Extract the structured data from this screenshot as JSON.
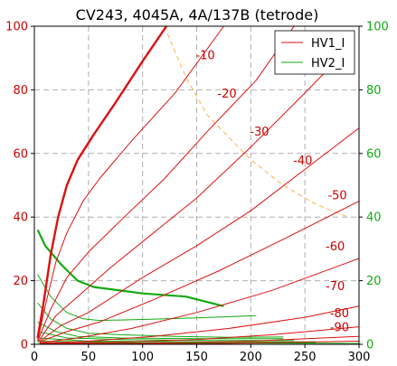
{
  "chart_data": {
    "type": "line",
    "title": "CV243, 4045A, 4A/137B (tetrode)",
    "xlim": [
      0,
      300
    ],
    "ylim": [
      0,
      100
    ],
    "y2lim": [
      0,
      100
    ],
    "xticks": [
      "0",
      "50",
      "100",
      "150",
      "200",
      "250",
      "300"
    ],
    "yticks": [
      "0",
      "20",
      "40",
      "60",
      "80",
      "100"
    ],
    "y2ticks": [
      "0",
      "20",
      "40",
      "60",
      "80",
      "100"
    ],
    "grid": true,
    "legend_position": "top-right",
    "colors": {
      "hv1": "#dd1111",
      "hv2": "#11aa11",
      "hv2_axis": "#11aa11",
      "dissipation": "#ffb040",
      "grid": "#b0b0b0"
    },
    "series": [
      {
        "name": "HV1_I",
        "color": "#dd1111",
        "role": "legend"
      },
      {
        "name": "HV2_I",
        "color": "#11aa11",
        "role": "legend"
      }
    ],
    "hv1_curves": [
      {
        "points": [
          [
            3,
            2
          ],
          [
            8,
            12
          ],
          [
            15,
            28
          ],
          [
            22,
            40
          ],
          [
            30,
            50
          ],
          [
            40,
            58
          ],
          [
            55,
            66
          ],
          [
            75,
            76
          ],
          [
            100,
            89
          ],
          [
            122,
            100
          ]
        ],
        "width": 2.4
      },
      {
        "points": [
          [
            3,
            1
          ],
          [
            10,
            12
          ],
          [
            20,
            26
          ],
          [
            30,
            35
          ],
          [
            45,
            45
          ],
          [
            60,
            52
          ],
          [
            90,
            64
          ],
          [
            130,
            79
          ],
          [
            175,
            100
          ]
        ],
        "width": 1
      },
      {
        "points": [
          [
            3,
            1
          ],
          [
            15,
            11
          ],
          [
            30,
            21
          ],
          [
            50,
            29
          ],
          [
            80,
            39
          ],
          [
            120,
            52
          ],
          [
            160,
            67
          ],
          [
            205,
            83
          ],
          [
            240,
            100
          ]
        ],
        "width": 1
      },
      {
        "points": [
          [
            4,
            1
          ],
          [
            20,
            9
          ],
          [
            40,
            15
          ],
          [
            70,
            24
          ],
          [
            110,
            35
          ],
          [
            150,
            46
          ],
          [
            200,
            62
          ],
          [
            250,
            79
          ],
          [
            290,
            93
          ]
        ],
        "width": 1
      },
      {
        "points": [
          [
            5,
            1
          ],
          [
            25,
            6
          ],
          [
            50,
            10
          ],
          [
            100,
            21
          ],
          [
            150,
            31
          ],
          [
            200,
            42
          ],
          [
            250,
            55
          ],
          [
            300,
            68
          ]
        ],
        "width": 1
      },
      {
        "points": [
          [
            5,
            0.8
          ],
          [
            30,
            4
          ],
          [
            60,
            7
          ],
          [
            110,
            14
          ],
          [
            170,
            23
          ],
          [
            230,
            33
          ],
          [
            300,
            45
          ]
        ],
        "width": 1
      },
      {
        "points": [
          [
            5,
            0.5
          ],
          [
            40,
            2
          ],
          [
            90,
            5
          ],
          [
            150,
            10
          ],
          [
            220,
            17
          ],
          [
            300,
            27
          ]
        ],
        "width": 1
      },
      {
        "points": [
          [
            5,
            0.3
          ],
          [
            50,
            1
          ],
          [
            110,
            2.5
          ],
          [
            180,
            5
          ],
          [
            250,
            8.5
          ],
          [
            300,
            12
          ]
        ],
        "width": 1
      },
      {
        "points": [
          [
            5,
            0.2
          ],
          [
            80,
            0.7
          ],
          [
            150,
            1.5
          ],
          [
            220,
            3
          ],
          [
            300,
            5.5
          ]
        ],
        "width": 1
      },
      {
        "points": [
          [
            5,
            0.1
          ],
          [
            100,
            0.3
          ],
          [
            200,
            1
          ],
          [
            300,
            2.5
          ]
        ],
        "width": 1
      },
      {
        "points": [
          [
            5,
            0.05
          ],
          [
            150,
            0.15
          ],
          [
            300,
            1
          ]
        ],
        "width": 1
      }
    ],
    "hv2_curves": [
      {
        "points": [
          [
            3,
            36
          ],
          [
            10,
            31
          ],
          [
            25,
            25
          ],
          [
            40,
            20
          ],
          [
            55,
            18
          ],
          [
            100,
            16
          ],
          [
            140,
            15
          ],
          [
            175,
            12
          ]
        ],
        "width": 2.2
      },
      {
        "points": [
          [
            3,
            22
          ],
          [
            15,
            15
          ],
          [
            30,
            10
          ],
          [
            45,
            8
          ],
          [
            60,
            7.5
          ],
          [
            100,
            7.8
          ],
          [
            150,
            8.3
          ],
          [
            205,
            9
          ]
        ],
        "width": 1
      },
      {
        "points": [
          [
            3,
            13
          ],
          [
            15,
            8
          ],
          [
            30,
            5
          ],
          [
            50,
            3.5
          ],
          [
            80,
            3
          ],
          [
            130,
            2.5
          ],
          [
            180,
            2.2
          ],
          [
            230,
            2.3
          ]
        ],
        "width": 1
      },
      {
        "points": [
          [
            3,
            7
          ],
          [
            20,
            4
          ],
          [
            40,
            2.5
          ],
          [
            80,
            2
          ],
          [
            150,
            1.8
          ],
          [
            230,
            1.8
          ]
        ],
        "width": 1
      },
      {
        "points": [
          [
            3,
            4
          ],
          [
            30,
            2
          ],
          [
            80,
            1.5
          ],
          [
            160,
            1.2
          ],
          [
            240,
            1.2
          ]
        ],
        "width": 1
      },
      {
        "points": [
          [
            3,
            2
          ],
          [
            50,
            1
          ],
          [
            150,
            0.8
          ],
          [
            260,
            0.8
          ]
        ],
        "width": 1
      },
      {
        "points": [
          [
            3,
            1
          ],
          [
            100,
            0.5
          ],
          [
            260,
            0.5
          ]
        ],
        "width": 1
      },
      {
        "points": [
          [
            3,
            0.5
          ],
          [
            300,
            0.3
          ]
        ],
        "width": 1
      }
    ],
    "dissipation_curve": [
      [
        120,
        100
      ],
      [
        140,
        84
      ],
      [
        160,
        72
      ],
      [
        180,
        65
      ],
      [
        200,
        58
      ],
      [
        230,
        50
      ],
      [
        260,
        44
      ],
      [
        290,
        40
      ]
    ],
    "annotations": [
      {
        "text": "-10",
        "x": 158,
        "y": 91
      },
      {
        "text": "-20",
        "x": 178,
        "y": 79
      },
      {
        "text": "-30",
        "x": 208,
        "y": 67
      },
      {
        "text": "-40",
        "x": 248,
        "y": 58
      },
      {
        "text": "-50",
        "x": 280,
        "y": 47
      },
      {
        "text": "-60",
        "x": 278,
        "y": 31
      },
      {
        "text": "-70",
        "x": 278,
        "y": 18.5
      },
      {
        "text": "-80",
        "x": 282,
        "y": 10
      },
      {
        "text": "-90",
        "x": 282,
        "y": 5.5
      }
    ]
  }
}
